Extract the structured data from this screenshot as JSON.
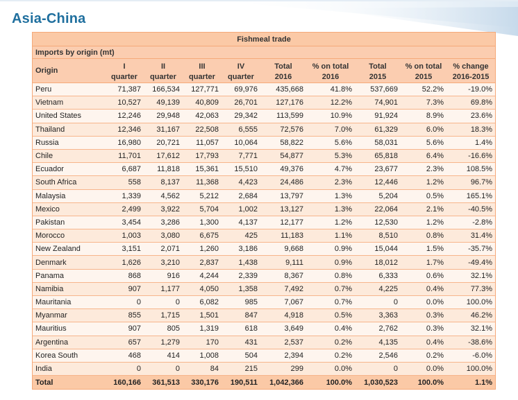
{
  "title": "Asia-China",
  "table": {
    "caption": "Fishmeal trade",
    "subcaption": "Imports by origin (mt)",
    "headers": [
      {
        "line1": "Origin",
        "line2": ""
      },
      {
        "line1": "I",
        "line2": "quarter"
      },
      {
        "line1": "II",
        "line2": "quarter"
      },
      {
        "line1": "III",
        "line2": "quarter"
      },
      {
        "line1": "IV",
        "line2": "quarter"
      },
      {
        "line1": "Total",
        "line2": "2016"
      },
      {
        "line1": "% on total",
        "line2": "2016"
      },
      {
        "line1": "Total",
        "line2": "2015"
      },
      {
        "line1": "% on total",
        "line2": "2015"
      },
      {
        "line1": "% change",
        "line2": "2016-2015"
      }
    ],
    "rows": [
      [
        "Peru",
        "71,387",
        "166,534",
        "127,771",
        "69,976",
        "435,668",
        "41.8%",
        "537,669",
        "52.2%",
        "-19.0%"
      ],
      [
        "Vietnam",
        "10,527",
        "49,139",
        "40,809",
        "26,701",
        "127,176",
        "12.2%",
        "74,901",
        "7.3%",
        "69.8%"
      ],
      [
        "United States",
        "12,246",
        "29,948",
        "42,063",
        "29,342",
        "113,599",
        "10.9%",
        "91,924",
        "8.9%",
        "23.6%"
      ],
      [
        "Thailand",
        "12,346",
        "31,167",
        "22,508",
        "6,555",
        "72,576",
        "7.0%",
        "61,329",
        "6.0%",
        "18.3%"
      ],
      [
        "Russia",
        "16,980",
        "20,721",
        "11,057",
        "10,064",
        "58,822",
        "5.6%",
        "58,031",
        "5.6%",
        "1.4%"
      ],
      [
        "Chile",
        "11,701",
        "17,612",
        "17,793",
        "7,771",
        "54,877",
        "5.3%",
        "65,818",
        "6.4%",
        "-16.6%"
      ],
      [
        "Ecuador",
        "6,687",
        "11,818",
        "15,361",
        "15,510",
        "49,376",
        "4.7%",
        "23,677",
        "2.3%",
        "108.5%"
      ],
      [
        "South Africa",
        "558",
        "8,137",
        "11,368",
        "4,423",
        "24,486",
        "2.3%",
        "12,446",
        "1.2%",
        "96.7%"
      ],
      [
        "Malaysia",
        "1,339",
        "4,562",
        "5,212",
        "2,684",
        "13,797",
        "1.3%",
        "5,204",
        "0.5%",
        "165.1%"
      ],
      [
        "Mexico",
        "2,499",
        "3,922",
        "5,704",
        "1,002",
        "13,127",
        "1.3%",
        "22,064",
        "2.1%",
        "-40.5%"
      ],
      [
        "Pakistan",
        "3,454",
        "3,286",
        "1,300",
        "4,137",
        "12,177",
        "1.2%",
        "12,530",
        "1.2%",
        "-2.8%"
      ],
      [
        "Morocco",
        "1,003",
        "3,080",
        "6,675",
        "425",
        "11,183",
        "1.1%",
        "8,510",
        "0.8%",
        "31.4%"
      ],
      [
        "New Zealand",
        "3,151",
        "2,071",
        "1,260",
        "3,186",
        "9,668",
        "0.9%",
        "15,044",
        "1.5%",
        "-35.7%"
      ],
      [
        "Denmark",
        "1,626",
        "3,210",
        "2,837",
        "1,438",
        "9,111",
        "0.9%",
        "18,012",
        "1.7%",
        "-49.4%"
      ],
      [
        "Panama",
        "868",
        "916",
        "4,244",
        "2,339",
        "8,367",
        "0.8%",
        "6,333",
        "0.6%",
        "32.1%"
      ],
      [
        "Namibia",
        "907",
        "1,177",
        "4,050",
        "1,358",
        "7,492",
        "0.7%",
        "4,225",
        "0.4%",
        "77.3%"
      ],
      [
        "Mauritania",
        "0",
        "0",
        "6,082",
        "985",
        "7,067",
        "0.7%",
        "0",
        "0.0%",
        "100.0%"
      ],
      [
        "Myanmar",
        "855",
        "1,715",
        "1,501",
        "847",
        "4,918",
        "0.5%",
        "3,363",
        "0.3%",
        "46.2%"
      ],
      [
        "Mauritius",
        "907",
        "805",
        "1,319",
        "618",
        "3,649",
        "0.4%",
        "2,762",
        "0.3%",
        "32.1%"
      ],
      [
        "Argentina",
        "657",
        "1,279",
        "170",
        "431",
        "2,537",
        "0.2%",
        "4,135",
        "0.4%",
        "-38.6%"
      ],
      [
        "Korea South",
        "468",
        "414",
        "1,008",
        "504",
        "2,394",
        "0.2%",
        "2,546",
        "0.2%",
        "-6.0%"
      ],
      [
        "India",
        "0",
        "0",
        "84",
        "215",
        "299",
        "0.0%",
        "0",
        "0.0%",
        "100.0%"
      ]
    ],
    "total": [
      "Total",
      "160,166",
      "361,513",
      "330,176",
      "190,511",
      "1,042,366",
      "100.0%",
      "1,030,523",
      "100.0%",
      "1.1%"
    ]
  },
  "colors": {
    "title": "#1f6f9e",
    "header_bg": "#fbc9a6",
    "row_odd": "#fdeadb",
    "row_even": "#fef5ee"
  }
}
